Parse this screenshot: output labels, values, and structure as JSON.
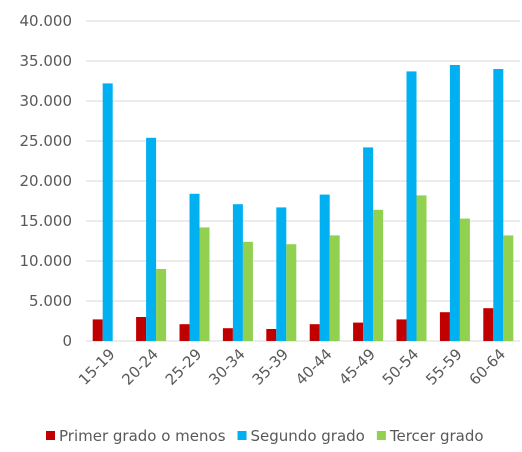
{
  "chart_data": {
    "type": "bar",
    "categories": [
      "15-19",
      "20-24",
      "25-29",
      "30-34",
      "35-39",
      "40-44",
      "45-49",
      "50-54",
      "55-59",
      "60-64"
    ],
    "series": [
      {
        "name": "Primer grado o menos",
        "color": "#c00000",
        "values": [
          2700,
          3000,
          2100,
          1600,
          1500,
          2100,
          2300,
          2700,
          3600,
          4100
        ]
      },
      {
        "name": "Segundo grado",
        "color": "#00b0f0",
        "values": [
          32200,
          25400,
          18400,
          17100,
          16700,
          18300,
          24200,
          33700,
          34500,
          34000
        ]
      },
      {
        "name": "Tercer grado",
        "color": "#92d050",
        "values": [
          0,
          9000,
          14200,
          12400,
          12100,
          13200,
          16400,
          18200,
          15300,
          13200
        ]
      }
    ],
    "ylim": [
      0,
      40000
    ],
    "yticks": [
      0,
      {
        "value": 5000,
        "label": "5.000"
      },
      {
        "value": 10000,
        "label": "10.000"
      },
      {
        "value": 15000,
        "label": "15.000"
      },
      {
        "value": 20000,
        "label": "20.000"
      },
      {
        "value": 25000,
        "label": "25.000"
      },
      {
        "value": 30000,
        "label": "30.000"
      },
      {
        "value": 35000,
        "label": "35.000"
      },
      {
        "value": 40000,
        "label": "40.000"
      }
    ],
    "grid": true,
    "legend": "bottom"
  }
}
